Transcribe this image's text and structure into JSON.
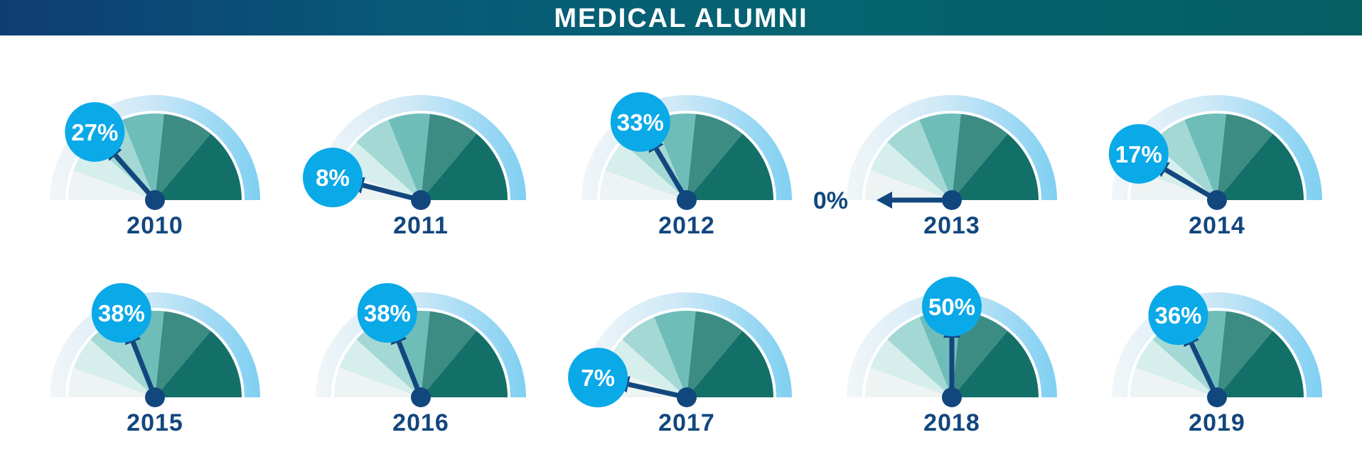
{
  "banner": {
    "title": "MEDICAL ALUMNI"
  },
  "colors": {
    "banner_start": "#0f3d73",
    "banner_end": "#055e62",
    "rim": "#7fcff2",
    "badge": "#0aa9e8",
    "needle": "#12477e",
    "year_text": "#12477e",
    "segments": [
      "#eef3f4",
      "#d6eeec",
      "#a3d8d4",
      "#6fbdb9",
      "#3d8c84",
      "#137068"
    ]
  },
  "chart_data": {
    "type": "gauge",
    "title": "MEDICAL ALUMNI",
    "unit": "%",
    "scale_max": 100,
    "gauges": [
      {
        "year": "2010",
        "value": 27,
        "label": "27%"
      },
      {
        "year": "2011",
        "value": 8,
        "label": "8%"
      },
      {
        "year": "2012",
        "value": 33,
        "label": "33%"
      },
      {
        "year": "2013",
        "value": 0,
        "label": "0%"
      },
      {
        "year": "2014",
        "value": 17,
        "label": "17%"
      },
      {
        "year": "2015",
        "value": 38,
        "label": "38%"
      },
      {
        "year": "2016",
        "value": 38,
        "label": "38%"
      },
      {
        "year": "2017",
        "value": 7,
        "label": "7%"
      },
      {
        "year": "2018",
        "value": 50,
        "label": "50%"
      },
      {
        "year": "2019",
        "value": 36,
        "label": "36%"
      }
    ]
  }
}
